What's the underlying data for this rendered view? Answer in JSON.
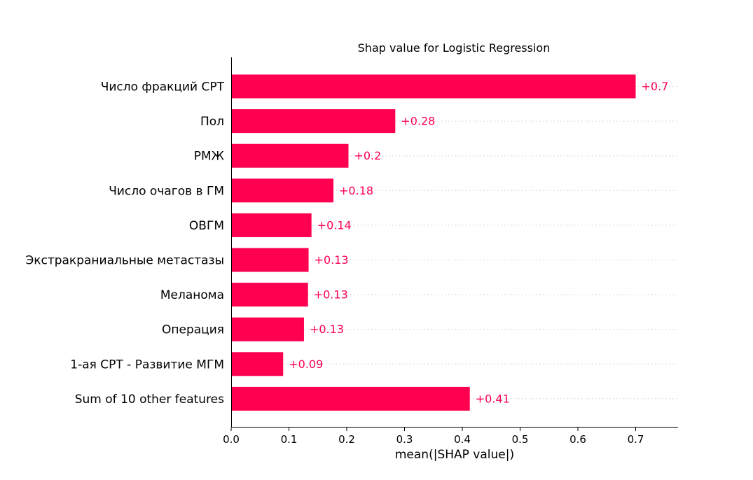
{
  "chart_data": {
    "type": "bar",
    "orientation": "horizontal",
    "title": "Shap value for Logistic Regression",
    "xlabel": "mean(|SHAP value|)",
    "ylabel": "",
    "xlim": [
      0,
      0.77
    ],
    "xticks": [
      0.0,
      0.1,
      0.2,
      0.3,
      0.4,
      0.5,
      0.6,
      0.7
    ],
    "xtick_labels": [
      "0.0",
      "0.1",
      "0.2",
      "0.3",
      "0.4",
      "0.5",
      "0.6",
      "0.7"
    ],
    "grid": "row dotted guides",
    "legend": "none",
    "bar_color": "#ff0051",
    "categories": [
      "Число фракций СРТ",
      "Пол",
      "РМЖ",
      "Число очагов в ГМ",
      "ОВГМ",
      "Экстракраниальные метастазы",
      "Меланома",
      "Операция",
      "1-ая СРТ - Развитие МГМ",
      "Sum of 10 other features"
    ],
    "values": [
      0.7,
      0.284,
      0.203,
      0.177,
      0.139,
      0.134,
      0.133,
      0.126,
      0.09,
      0.413
    ],
    "value_labels": [
      "+0.7",
      "+0.28",
      "+0.2",
      "+0.18",
      "+0.14",
      "+0.13",
      "+0.13",
      "+0.13",
      "+0.09",
      "+0.41"
    ]
  }
}
